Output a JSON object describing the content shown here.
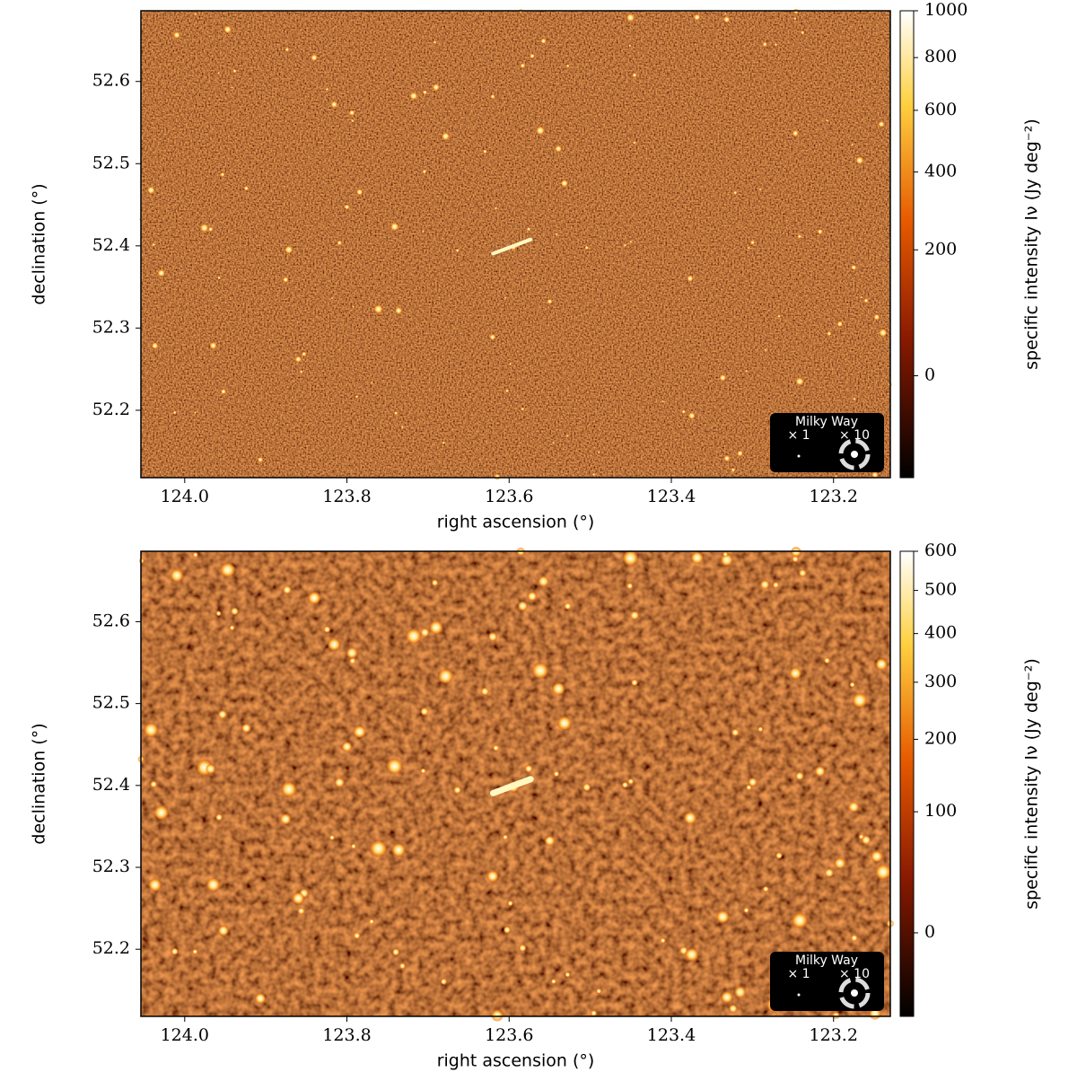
{
  "chart_data": [
    {
      "type": "image",
      "xlabel": "right ascension (°)",
      "ylabel": "declination (°)",
      "xlim": [
        124.054,
        123.13
      ],
      "xticks": [
        {
          "value": 124.0,
          "label": "124.0"
        },
        123.8,
        123.6,
        123.4,
        123.2
      ],
      "ylim": [
        52.118,
        52.686
      ],
      "yticks": [
        52.2,
        52.3,
        52.4,
        52.5,
        52.6
      ],
      "colorbar": {
        "label": "specific intensity Iν (Jy deg⁻²)",
        "clim": [
          -50,
          1000
        ],
        "scale": "sqrt",
        "ticks": [
          0,
          200,
          400,
          600,
          800,
          1000
        ]
      },
      "inset": {
        "title": "Milky Way",
        "labels": [
          "× 1",
          "× 10"
        ]
      }
    },
    {
      "type": "image",
      "xlabel": "right ascension (°)",
      "ylabel": "declination (°)",
      "xlim": [
        124.054,
        123.13
      ],
      "xticks": [
        {
          "value": 124.0,
          "label": "124.0"
        },
        123.8,
        123.6,
        123.4,
        123.2
      ],
      "ylim": [
        52.118,
        52.686
      ],
      "yticks": [
        52.2,
        52.3,
        52.4,
        52.5,
        52.6
      ],
      "colorbar": {
        "label": "specific intensity Iν (Jy deg⁻²)",
        "clim": [
          -20,
          600
        ],
        "scale": "sqrt",
        "ticks": [
          0,
          100,
          200,
          300,
          400,
          500,
          600
        ]
      },
      "inset": {
        "title": "Milky Way",
        "labels": [
          "× 1",
          "× 10"
        ]
      }
    }
  ]
}
